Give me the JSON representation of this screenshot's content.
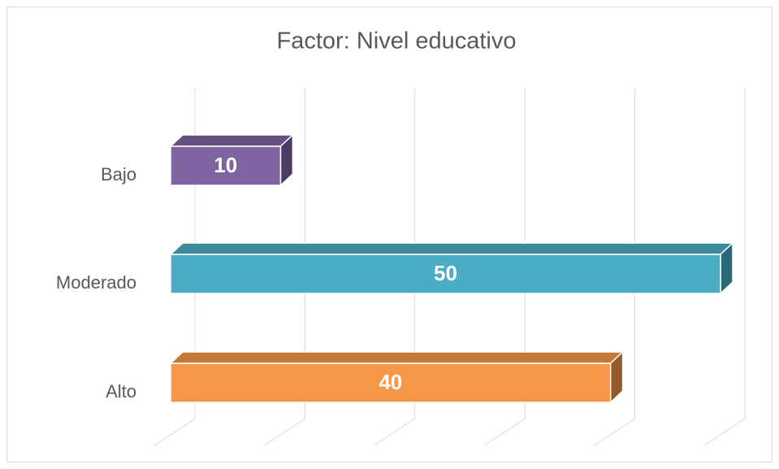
{
  "chart_data": {
    "type": "bar3d",
    "title": "Factor: Nivel educativo",
    "categories": [
      "Bajo",
      "Moderado",
      "Alto"
    ],
    "values": [
      10,
      50,
      40
    ],
    "colors": [
      "#8064a2",
      "#4bacc6",
      "#f79646"
    ],
    "xlim": [
      0,
      50
    ],
    "xticks": [
      0,
      10,
      20,
      30,
      40,
      50
    ],
    "grid": true
  }
}
